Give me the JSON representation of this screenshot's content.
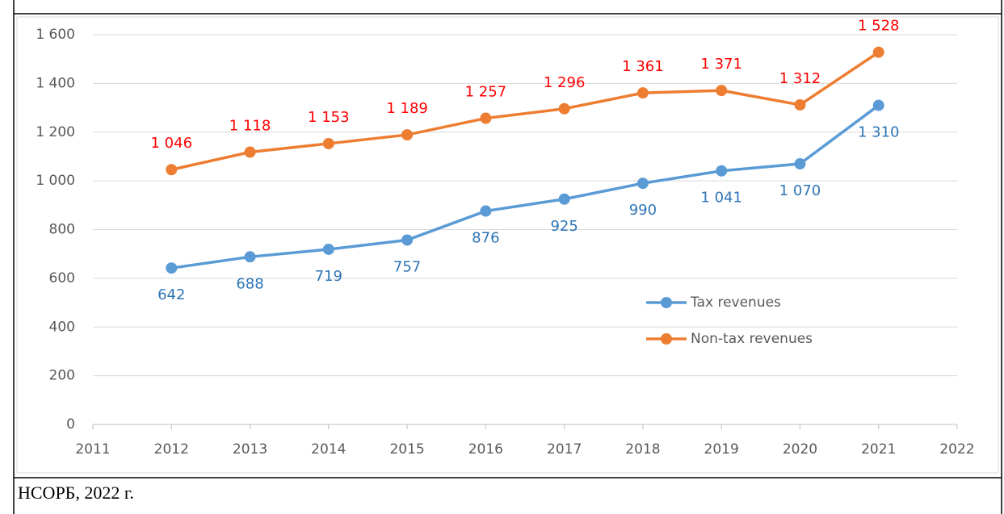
{
  "chart_data": {
    "type": "line",
    "xlim": [
      2011,
      2022
    ],
    "xticks": [
      2011,
      2012,
      2013,
      2014,
      2015,
      2016,
      2017,
      2018,
      2019,
      2020,
      2021,
      2022
    ],
    "ylim": [
      0,
      1600
    ],
    "yticks": [
      0,
      200,
      400,
      600,
      800,
      {
        "value": 1000,
        "label": "1 000"
      },
      {
        "value": 1200,
        "label": "1 200"
      },
      {
        "value": 1400,
        "label": "1 400"
      },
      {
        "value": 1600,
        "label": "1 600"
      }
    ],
    "grid": true,
    "legend": "right",
    "series": [
      {
        "name": "Tax revenues",
        "color": "#5b9bd5",
        "label_color": "#2e75b6",
        "label_position": "below",
        "x": [
          2012,
          2013,
          2014,
          2015,
          2016,
          2017,
          2018,
          2019,
          2020,
          2021
        ],
        "values": [
          642,
          688,
          719,
          757,
          876,
          925,
          990,
          1041,
          1070,
          1310
        ],
        "value_labels": [
          "642",
          "688",
          "719",
          "757",
          "876",
          "925",
          "990",
          "1 041",
          "1 070",
          "1 310"
        ]
      },
      {
        "name": "Non-tax revenues",
        "color": "#ed7d31",
        "label_color": "#ff0000",
        "label_position": "above",
        "x": [
          2012,
          2013,
          2014,
          2015,
          2016,
          2017,
          2018,
          2019,
          2020,
          2021
        ],
        "values": [
          1046,
          1118,
          1153,
          1189,
          1257,
          1296,
          1361,
          1371,
          1312,
          1528
        ],
        "value_labels": [
          "1 046",
          "1 118",
          "1 153",
          "1 189",
          "1 257",
          "1 296",
          "1 361",
          "1 371",
          "1 312",
          "1 528"
        ]
      }
    ]
  },
  "source": "НСОРБ, 2022 г."
}
